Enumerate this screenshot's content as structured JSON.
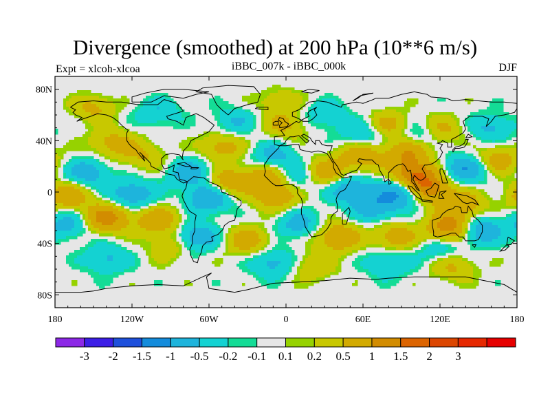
{
  "title": "Divergence (smoothed) at 200 hPa (10**6 m/s)",
  "expt_label": "Expt = xlcoh-xlcoa",
  "run_label": "iBBC_007k - iBBC_000k",
  "season_label": "DJF",
  "chart_data": {
    "type": "heatmap",
    "title": "Divergence (smoothed) at 200 hPa (10**6 m/s)",
    "projection": "cylindrical-equidistant",
    "x_range": [
      -180,
      180
    ],
    "y_range": [
      -90,
      90
    ],
    "x_ticks": [
      {
        "value": -180,
        "label": "180"
      },
      {
        "value": -120,
        "label": "120W"
      },
      {
        "value": -60,
        "label": "60W"
      },
      {
        "value": 0,
        "label": "0"
      },
      {
        "value": 60,
        "label": "60E"
      },
      {
        "value": 120,
        "label": "120E"
      },
      {
        "value": 180,
        "label": "180"
      }
    ],
    "y_ticks": [
      {
        "value": 80,
        "label": "80N"
      },
      {
        "value": 40,
        "label": "40N"
      },
      {
        "value": 0,
        "label": "0"
      },
      {
        "value": -40,
        "label": "40S"
      },
      {
        "value": -80,
        "label": "80S"
      }
    ],
    "missing_color": "#e6e6e6",
    "colorbar": {
      "colors": [
        "#8c28e6",
        "#3c1ee6",
        "#1e50dc",
        "#148cdc",
        "#1eb4dc",
        "#14d2d2",
        "#14dc96",
        "#e6e6e6",
        "#96d200",
        "#c8c800",
        "#d2aa00",
        "#d28c00",
        "#dc6400",
        "#dc4600",
        "#e62800",
        "#e60000"
      ],
      "labels": [
        "-3",
        "-2",
        "-1.5",
        "-1",
        "-0.5",
        "-0.2",
        "-0.1",
        "0.1",
        "0.2",
        "0.5",
        "1",
        "1.5",
        "2",
        "3"
      ],
      "thresholds": [
        -3,
        -2,
        -1.5,
        -1,
        -0.5,
        -0.2,
        -0.1,
        0.1,
        0.2,
        0.5,
        1,
        1.5,
        2,
        3
      ]
    },
    "anomaly_field": {
      "units": "10**6 m/s",
      "description": "smoothed DJF 200 hPa divergence difference, values estimated from colour shading",
      "centers": [
        {
          "lon": 100,
          "lat": 12,
          "value": 1.5
        },
        {
          "lon": 112,
          "lat": 2,
          "value": 1.2
        },
        {
          "lon": 95,
          "lat": 30,
          "value": 1.0
        },
        {
          "lon": 58,
          "lat": 28,
          "value": 0.9
        },
        {
          "lon": 128,
          "lat": -28,
          "value": 1.4
        },
        {
          "lon": 138,
          "lat": -10,
          "value": 0.8
        },
        {
          "lon": -140,
          "lat": -20,
          "value": 1.3
        },
        {
          "lon": -170,
          "lat": -3,
          "value": 0.9
        },
        {
          "lon": -100,
          "lat": -22,
          "value": 0.9
        },
        {
          "lon": -45,
          "lat": 8,
          "value": 0.9
        },
        {
          "lon": -15,
          "lat": 12,
          "value": 0.8
        },
        {
          "lon": -8,
          "lat": -3,
          "value": 0.9
        },
        {
          "lon": 30,
          "lat": 15,
          "value": 0.9
        },
        {
          "lon": 40,
          "lat": -35,
          "value": 1.0
        },
        {
          "lon": -30,
          "lat": -38,
          "value": 0.8
        },
        {
          "lon": 85,
          "lat": -35,
          "value": 0.8
        },
        {
          "lon": -135,
          "lat": 38,
          "value": 0.7
        },
        {
          "lon": -50,
          "lat": 35,
          "value": 0.7
        },
        {
          "lon": 80,
          "lat": 52,
          "value": 0.7
        },
        {
          "lon": 120,
          "lat": 48,
          "value": 0.7
        },
        {
          "lon": 165,
          "lat": 25,
          "value": 0.8
        },
        {
          "lon": -150,
          "lat": 66,
          "value": 0.6
        },
        {
          "lon": 0,
          "lat": 52,
          "value": 0.6
        },
        {
          "lon": -5,
          "lat": 72,
          "value": 0.5
        },
        {
          "lon": 130,
          "lat": -58,
          "value": 0.6
        },
        {
          "lon": 20,
          "lat": -58,
          "value": 0.5
        },
        {
          "lon": -110,
          "lat": 28,
          "value": 0.5
        },
        {
          "lon": -90,
          "lat": -42,
          "value": 0.5
        },
        {
          "lon": 90,
          "lat": 0,
          "value": -1.2
        },
        {
          "lon": 140,
          "lat": 18,
          "value": -1.0
        },
        {
          "lon": 150,
          "lat": -30,
          "value": -1.0
        },
        {
          "lon": -60,
          "lat": -5,
          "value": -1.0
        },
        {
          "lon": -75,
          "lat": 15,
          "value": -0.8
        },
        {
          "lon": -155,
          "lat": 15,
          "value": -0.8
        },
        {
          "lon": -120,
          "lat": -2,
          "value": -0.9
        },
        {
          "lon": -170,
          "lat": -25,
          "value": -0.7
        },
        {
          "lon": -70,
          "lat": -35,
          "value": -0.9
        },
        {
          "lon": -10,
          "lat": 28,
          "value": -0.7
        },
        {
          "lon": 10,
          "lat": 12,
          "value": -0.6
        },
        {
          "lon": 50,
          "lat": 2,
          "value": -0.9
        },
        {
          "lon": 70,
          "lat": -12,
          "value": -0.8
        },
        {
          "lon": 10,
          "lat": -25,
          "value": -0.7
        },
        {
          "lon": 60,
          "lat": 45,
          "value": -0.6
        },
        {
          "lon": 105,
          "lat": 45,
          "value": -0.6
        },
        {
          "lon": -10,
          "lat": -55,
          "value": -0.7
        },
        {
          "lon": 80,
          "lat": -55,
          "value": -0.6
        },
        {
          "lon": -140,
          "lat": -52,
          "value": -0.6
        },
        {
          "lon": -100,
          "lat": 62,
          "value": -0.5
        },
        {
          "lon": 30,
          "lat": 60,
          "value": -0.5
        },
        {
          "lon": 160,
          "lat": 50,
          "value": -0.6
        },
        {
          "lon": -40,
          "lat": 55,
          "value": -0.5
        },
        {
          "lon": 120,
          "lat": -45,
          "value": -0.5
        }
      ]
    }
  }
}
